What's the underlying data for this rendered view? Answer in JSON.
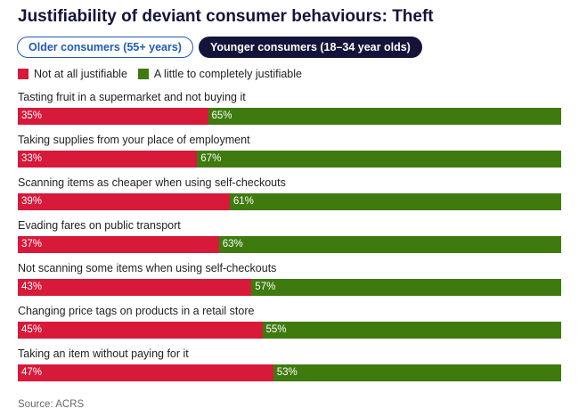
{
  "title": "Justifiability of deviant consumer behaviours: Theft",
  "toggles": [
    {
      "label": "Older consumers (55+ years)",
      "active": false
    },
    {
      "label": "Younger consumers (18–34 year olds)",
      "active": true
    }
  ],
  "source": "Source: ACRS",
  "colors": {
    "not_justifiable": "#d7193a",
    "justifiable": "#3f7a0f"
  },
  "chart_data": {
    "type": "bar",
    "orientation": "horizontal",
    "stacked": true,
    "legend_position": "top-left",
    "series": [
      {
        "name": "Not at all justifiable",
        "values": [
          35,
          33,
          39,
          37,
          43,
          45,
          47
        ]
      },
      {
        "name": "A little to completely justifiable",
        "values": [
          65,
          67,
          61,
          63,
          57,
          55,
          53
        ]
      }
    ],
    "categories": [
      "Tasting fruit in a supermarket and not buying it",
      "Taking supplies from your place of employment",
      "Scanning items as cheaper when using self-checkouts",
      "Evading fares on public transport",
      "Not scanning some items when using self-checkouts",
      "Changing price tags on products in a retail store",
      "Taking an item without paying for it"
    ],
    "value_format": "{v}%",
    "xlim": [
      0,
      100
    ]
  }
}
